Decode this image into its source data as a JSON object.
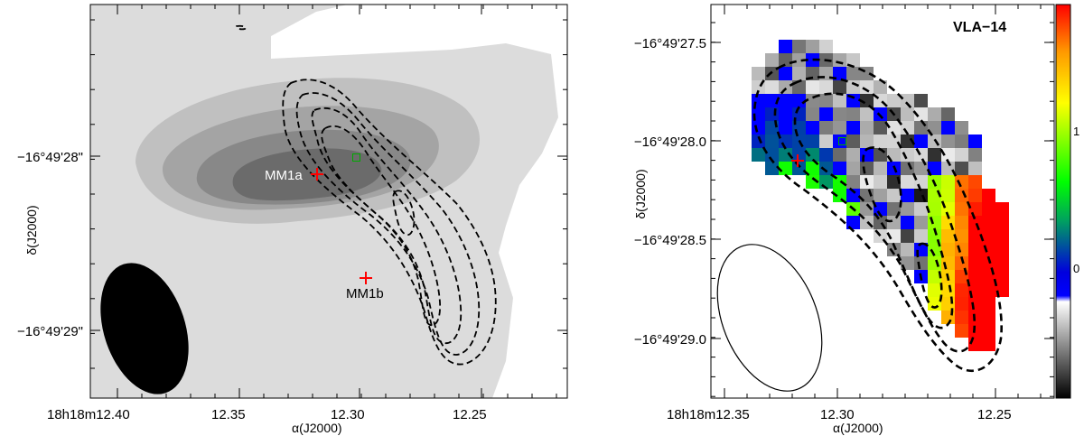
{
  "chart_data": [
    {
      "type": "contour",
      "panel": "left",
      "xlabel": "α(J2000)",
      "ylabel": "δ(J2000)",
      "x_ticks": [
        {
          "ra_s": 12.4,
          "label": "18h18m12.40"
        },
        {
          "ra_s": 12.35,
          "label": "12.35"
        },
        {
          "ra_s": 12.3,
          "label": "12.30"
        },
        {
          "ra_s": 12.25,
          "label": "12.25"
        }
      ],
      "y_ticks": [
        {
          "dec_s": 28.0,
          "label": "−16°49'28\""
        },
        {
          "dec_s": 29.0,
          "label": "−16°49'29\""
        }
      ],
      "sources": [
        {
          "name": "MM1a",
          "ra_s": 12.32,
          "dec_s": 28.05,
          "marker": "plus",
          "color": "#ff0000",
          "label_color": "#ffffff"
        },
        {
          "name": "MM1b",
          "ra_s": 12.3,
          "dec_s": 28.68,
          "marker": "plus",
          "color": "#ff0000",
          "label_color": "#000000"
        },
        {
          "name": "",
          "ra_s": 12.304,
          "dec_s": 28.0,
          "marker": "square",
          "color": "#00aa00"
        }
      ],
      "beam": "filled ellipse, bottom-left",
      "filled_contours": "greyscale, 4 levels",
      "dashed_contours": "black, 5 levels"
    },
    {
      "type": "heatmap",
      "panel": "right",
      "title": "VLA−14",
      "xlabel": "α(J2000)",
      "ylabel": "δ(J2000)",
      "x_ticks": [
        {
          "ra_s": 12.35,
          "label": "18h18m12.35"
        },
        {
          "ra_s": 12.3,
          "label": "12.30"
        },
        {
          "ra_s": 12.25,
          "label": "12.25"
        }
      ],
      "y_ticks": [
        {
          "dec_s": 27.5,
          "label": "−16°49'27.5"
        },
        {
          "dec_s": 28.0,
          "label": "−16°49'28.0"
        },
        {
          "dec_s": 28.5,
          "label": "−16°49'28.5"
        },
        {
          "dec_s": 29.0,
          "label": "−16°49'29.0"
        }
      ],
      "colorbar": {
        "ticks": [
          {
            "value": 0,
            "label": "0"
          },
          {
            "value": 1,
            "label": "1"
          }
        ],
        "colors": [
          "#000000",
          "#ffffff",
          "#0000ff",
          "#00ff00",
          "#ffff00",
          "#ff0000"
        ]
      },
      "sources": [
        {
          "name": "",
          "ra_s": 12.32,
          "dec_s": 28.05,
          "marker": "plus",
          "color": "#ff0000"
        },
        {
          "name": "",
          "ra_s": 12.304,
          "dec_s": 27.96,
          "marker": "square",
          "color": "#00aa00"
        }
      ],
      "beam": "open ellipse, bottom-left",
      "dashed_contours": "black, 4 levels"
    }
  ]
}
